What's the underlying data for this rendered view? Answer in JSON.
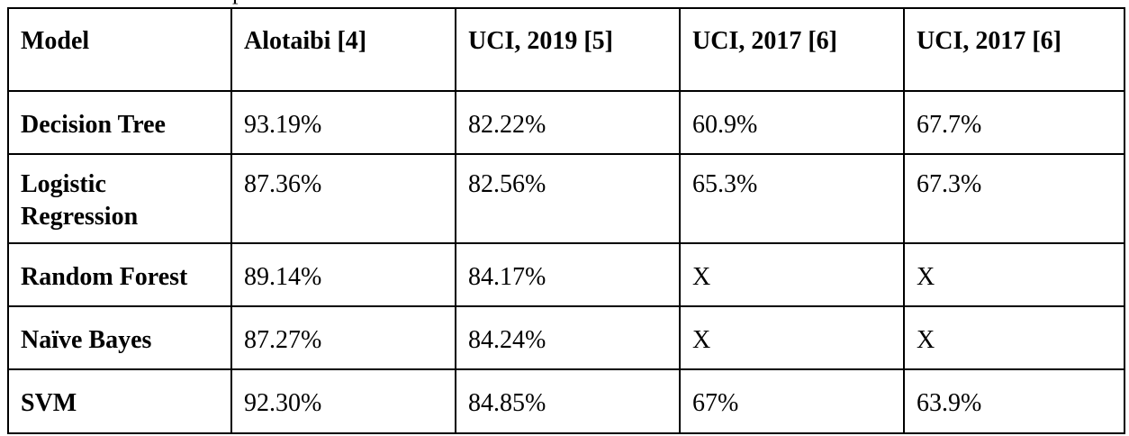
{
  "table": {
    "headers": [
      "Model",
      "Alotaibi [4]",
      "UCI, 2019 [5]",
      "UCI, 2017 [6]",
      "UCI, 2017 [6]"
    ],
    "rows": [
      {
        "model": "Decision Tree",
        "values": [
          "93.19%",
          "82.22%",
          "60.9%",
          "67.7%"
        ]
      },
      {
        "model": "Logistic Regression",
        "values": [
          "87.36%",
          "82.56%",
          "65.3%",
          "67.3%"
        ]
      },
      {
        "model": "Random Forest",
        "values": [
          "89.14%",
          "84.17%",
          "X",
          "X"
        ]
      },
      {
        "model": "Naïve Bayes",
        "values": [
          "87.27%",
          "84.24%",
          "X",
          "X"
        ]
      },
      {
        "model": "SVM",
        "values": [
          "92.30%",
          "84.85%",
          "67%",
          "63.9%"
        ]
      }
    ]
  }
}
